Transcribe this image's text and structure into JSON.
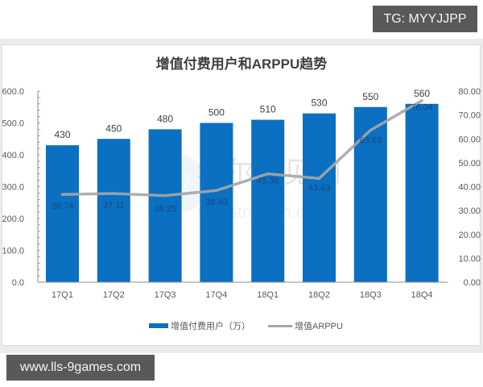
{
  "badges": {
    "top_right": "TG: MYYJJPP",
    "bottom_left": "www.lls-9games.com"
  },
  "watermark": {
    "cn": "华尔街见闻",
    "en": "wallstreetcn.com"
  },
  "colors": {
    "bar": "#0b6fc2",
    "line": "#a6a6a6",
    "axis_text": "#595959",
    "title": "#404040"
  },
  "chart_data": {
    "type": "bar+line",
    "title": "增值付费用户和ARPPU趋势",
    "categories": [
      "17Q1",
      "17Q2",
      "17Q3",
      "17Q4",
      "18Q1",
      "18Q2",
      "18Q3",
      "18Q4"
    ],
    "series": [
      {
        "name": "增值付费用户（万）",
        "type": "bar",
        "axis": "left",
        "values": [
          430,
          450,
          480,
          500,
          510,
          530,
          550,
          560
        ]
      },
      {
        "name": "增值ARPPU",
        "type": "line",
        "axis": "right",
        "values": [
          36.74,
          37.11,
          36.25,
          38.4,
          45.38,
          43.43,
          63.63,
          76.04
        ]
      }
    ],
    "y_left": {
      "range": [
        0,
        600
      ],
      "ticks": [
        "0.0",
        "100.0",
        "200.0",
        "300.0",
        "400.0",
        "500.0",
        "600.0"
      ]
    },
    "y_right": {
      "range": [
        0,
        80
      ],
      "ticks": [
        "0.00",
        "10.00",
        "20.00",
        "30.00",
        "40.00",
        "50.00",
        "60.00",
        "70.00",
        "80.00"
      ]
    },
    "xlabel": "",
    "ylabel": "",
    "grid": false,
    "legend_position": "bottom",
    "legend": [
      "增值付费用户（万）",
      "增值ARPPU"
    ]
  }
}
